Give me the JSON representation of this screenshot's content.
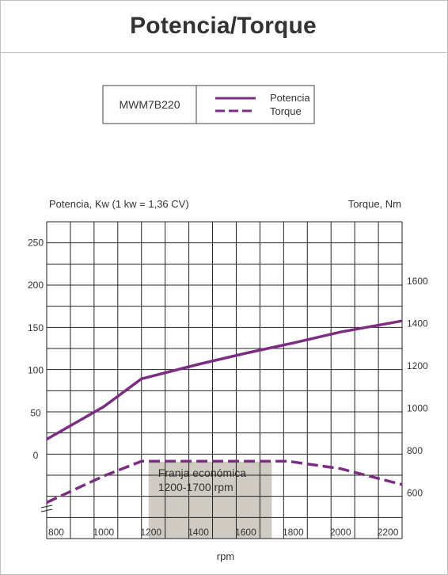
{
  "title": "Potencia/Torque",
  "legend": {
    "model": "MWM7B220",
    "items": [
      {
        "label": "Potencia",
        "style": "solid"
      },
      {
        "label": "Torque",
        "style": "dashed"
      }
    ]
  },
  "colors": {
    "series": "#7b2d83",
    "band": "#cfcac2",
    "grid": "#222222"
  },
  "chart_data": {
    "type": "line",
    "xlabel": "rpm",
    "ylabel_left": "Potencia, Kw (1 kw = 1,36 CV)",
    "ylabel_right": "Torque, Nm",
    "x_ticks": [
      800,
      1000,
      1200,
      1400,
      1600,
      1800,
      2000,
      2200
    ],
    "y_left_ticks": [
      0,
      50,
      100,
      150,
      200,
      250
    ],
    "y_right_ticks": [
      600,
      800,
      1000,
      1200,
      1400,
      1600
    ],
    "xlim": [
      760,
      2260
    ],
    "grid": true,
    "band": {
      "x_range": [
        1200,
        1700
      ],
      "label_line1": "Franja económica",
      "label_line2": "1200-1700 rpm"
    },
    "series": [
      {
        "name": "Potencia",
        "axis": "left",
        "points": [
          [
            760,
            19
          ],
          [
            1000,
            57
          ],
          [
            1160,
            90
          ],
          [
            1400,
            107
          ],
          [
            1600,
            120
          ],
          [
            1800,
            132
          ],
          [
            2000,
            145
          ],
          [
            2260,
            158
          ]
        ]
      },
      {
        "name": "Torque",
        "axis": "right",
        "points": [
          [
            760,
            555
          ],
          [
            1000,
            680
          ],
          [
            1160,
            750
          ],
          [
            1400,
            750
          ],
          [
            1600,
            750
          ],
          [
            1780,
            750
          ],
          [
            2000,
            715
          ],
          [
            2260,
            640
          ]
        ]
      }
    ]
  }
}
